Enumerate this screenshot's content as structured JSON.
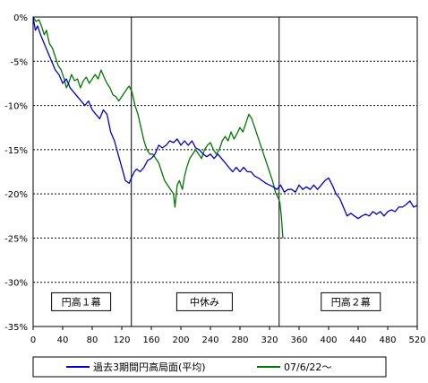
{
  "chart_data": {
    "type": "line",
    "x_ticks": [
      0,
      40,
      80,
      120,
      160,
      200,
      240,
      280,
      320,
      360,
      400,
      440,
      480,
      520
    ],
    "y_ticks": [
      "0%",
      "-5%",
      "-10%",
      "-15%",
      "-20%",
      "-25%",
      "-30%",
      "-35%"
    ],
    "xlim": [
      0,
      520
    ],
    "ylim": [
      -35,
      0
    ],
    "grid": "horizontal dashed",
    "legend_position": "bottom",
    "vertical_markers": [
      {
        "x": 133,
        "color": "#000000"
      },
      {
        "x": 333,
        "color": "#000000"
      }
    ],
    "annotations": [
      {
        "text": "円高１幕",
        "x": 65,
        "y": -32.2
      },
      {
        "text": "中休み",
        "x": 232,
        "y": -32.2
      },
      {
        "text": "円高２幕",
        "x": 430,
        "y": -32.2
      }
    ],
    "series": [
      {
        "name": "過去3期間円高局面(平均)",
        "color": "#0000cc",
        "points": [
          [
            0,
            0
          ],
          [
            3,
            -1.5
          ],
          [
            6,
            -1
          ],
          [
            10,
            -2
          ],
          [
            15,
            -3
          ],
          [
            20,
            -4
          ],
          [
            25,
            -5
          ],
          [
            30,
            -6
          ],
          [
            35,
            -6.5
          ],
          [
            40,
            -7.5
          ],
          [
            45,
            -7
          ],
          [
            50,
            -8
          ],
          [
            55,
            -8.5
          ],
          [
            60,
            -9
          ],
          [
            65,
            -9.5
          ],
          [
            70,
            -10
          ],
          [
            75,
            -9.5
          ],
          [
            80,
            -10.5
          ],
          [
            85,
            -11
          ],
          [
            90,
            -11.5
          ],
          [
            95,
            -10.5
          ],
          [
            100,
            -11
          ],
          [
            105,
            -13
          ],
          [
            110,
            -14
          ],
          [
            115,
            -15.5
          ],
          [
            120,
            -17
          ],
          [
            125,
            -18.5
          ],
          [
            130,
            -18.8
          ],
          [
            133,
            -18.2
          ],
          [
            137,
            -17.5
          ],
          [
            140,
            -17.2
          ],
          [
            145,
            -17.5
          ],
          [
            150,
            -17
          ],
          [
            155,
            -16.2
          ],
          [
            160,
            -16
          ],
          [
            165,
            -15.5
          ],
          [
            170,
            -14.5
          ],
          [
            175,
            -14.8
          ],
          [
            180,
            -14.5
          ],
          [
            185,
            -14
          ],
          [
            190,
            -14.2
          ],
          [
            195,
            -13.8
          ],
          [
            200,
            -14.5
          ],
          [
            205,
            -14
          ],
          [
            210,
            -14.5
          ],
          [
            215,
            -14
          ],
          [
            220,
            -14.8
          ],
          [
            225,
            -15
          ],
          [
            230,
            -15.5
          ],
          [
            235,
            -15.8
          ],
          [
            240,
            -15.5
          ],
          [
            245,
            -16
          ],
          [
            250,
            -15.5
          ],
          [
            255,
            -16
          ],
          [
            260,
            -16.5
          ],
          [
            265,
            -17
          ],
          [
            270,
            -17.5
          ],
          [
            275,
            -17
          ],
          [
            280,
            -17.5
          ],
          [
            285,
            -17
          ],
          [
            290,
            -17.5
          ],
          [
            295,
            -17.5
          ],
          [
            300,
            -18
          ],
          [
            305,
            -18.2
          ],
          [
            310,
            -18.5
          ],
          [
            315,
            -18.8
          ],
          [
            320,
            -19
          ],
          [
            325,
            -19.2
          ],
          [
            330,
            -19.5
          ],
          [
            335,
            -19
          ],
          [
            340,
            -19.8
          ],
          [
            345,
            -19.5
          ],
          [
            350,
            -19.5
          ],
          [
            355,
            -19.8
          ],
          [
            360,
            -19
          ],
          [
            365,
            -19.5
          ],
          [
            370,
            -19.2
          ],
          [
            375,
            -19.5
          ],
          [
            380,
            -19
          ],
          [
            385,
            -19.5
          ],
          [
            390,
            -19
          ],
          [
            395,
            -18.5
          ],
          [
            400,
            -18.2
          ],
          [
            405,
            -19
          ],
          [
            410,
            -20
          ],
          [
            415,
            -20.5
          ],
          [
            420,
            -21.5
          ],
          [
            425,
            -22.5
          ],
          [
            430,
            -22.2
          ],
          [
            435,
            -22.5
          ],
          [
            440,
            -22.8
          ],
          [
            445,
            -22.5
          ],
          [
            450,
            -22.3
          ],
          [
            455,
            -22.5
          ],
          [
            460,
            -22
          ],
          [
            465,
            -22.3
          ],
          [
            470,
            -22
          ],
          [
            475,
            -22.5
          ],
          [
            480,
            -22
          ],
          [
            485,
            -21.8
          ],
          [
            490,
            -22
          ],
          [
            495,
            -21.5
          ],
          [
            500,
            -21.5
          ],
          [
            505,
            -21.2
          ],
          [
            510,
            -20.8
          ],
          [
            515,
            -21.5
          ],
          [
            520,
            -21.3
          ]
        ]
      },
      {
        "name": "07/6/22～",
        "color": "#007700",
        "points": [
          [
            0,
            0
          ],
          [
            4,
            -0.5
          ],
          [
            8,
            -0.3
          ],
          [
            12,
            -1.2
          ],
          [
            15,
            -2
          ],
          [
            18,
            -1.5
          ],
          [
            22,
            -3
          ],
          [
            26,
            -3.5
          ],
          [
            30,
            -4.5
          ],
          [
            34,
            -5.5
          ],
          [
            38,
            -6
          ],
          [
            42,
            -7
          ],
          [
            45,
            -8
          ],
          [
            48,
            -7.5
          ],
          [
            52,
            -6.5
          ],
          [
            56,
            -7.2
          ],
          [
            60,
            -7
          ],
          [
            64,
            -8
          ],
          [
            68,
            -7.2
          ],
          [
            72,
            -6.8
          ],
          [
            76,
            -7.5
          ],
          [
            80,
            -7
          ],
          [
            84,
            -6.5
          ],
          [
            88,
            -7
          ],
          [
            92,
            -6
          ],
          [
            96,
            -6.8
          ],
          [
            100,
            -7.5
          ],
          [
            104,
            -8
          ],
          [
            108,
            -8.8
          ],
          [
            112,
            -9
          ],
          [
            116,
            -9.5
          ],
          [
            120,
            -9
          ],
          [
            124,
            -8.5
          ],
          [
            128,
            -8
          ],
          [
            130,
            -7.8
          ],
          [
            134,
            -8.5
          ],
          [
            138,
            -10
          ],
          [
            142,
            -11
          ],
          [
            146,
            -12.5
          ],
          [
            150,
            -14
          ],
          [
            154,
            -15
          ],
          [
            158,
            -15.5
          ],
          [
            162,
            -15.5
          ],
          [
            166,
            -16
          ],
          [
            170,
            -16.5
          ],
          [
            174,
            -17.5
          ],
          [
            178,
            -18.5
          ],
          [
            182,
            -19
          ],
          [
            186,
            -19.5
          ],
          [
            190,
            -20
          ],
          [
            192,
            -21.5
          ],
          [
            195,
            -19
          ],
          [
            198,
            -18.5
          ],
          [
            202,
            -19.5
          ],
          [
            205,
            -18
          ],
          [
            208,
            -17
          ],
          [
            212,
            -16
          ],
          [
            216,
            -15.5
          ],
          [
            220,
            -15
          ],
          [
            224,
            -15.5
          ],
          [
            228,
            -16
          ],
          [
            232,
            -15
          ],
          [
            236,
            -14.5
          ],
          [
            240,
            -14.2
          ],
          [
            244,
            -15
          ],
          [
            248,
            -15.5
          ],
          [
            252,
            -15
          ],
          [
            256,
            -14
          ],
          [
            260,
            -13.5
          ],
          [
            264,
            -14
          ],
          [
            268,
            -13
          ],
          [
            272,
            -13.8
          ],
          [
            276,
            -13.2
          ],
          [
            280,
            -12.5
          ],
          [
            284,
            -13
          ],
          [
            288,
            -12
          ],
          [
            292,
            -11
          ],
          [
            296,
            -11.5
          ],
          [
            300,
            -12.5
          ],
          [
            304,
            -13.5
          ],
          [
            308,
            -14.5
          ],
          [
            312,
            -15.5
          ],
          [
            316,
            -16.5
          ],
          [
            320,
            -17.5
          ],
          [
            324,
            -18.5
          ],
          [
            328,
            -19.8
          ],
          [
            332,
            -20.5
          ],
          [
            334,
            -21
          ],
          [
            336,
            -22.5
          ],
          [
            338,
            -25
          ]
        ]
      }
    ]
  }
}
